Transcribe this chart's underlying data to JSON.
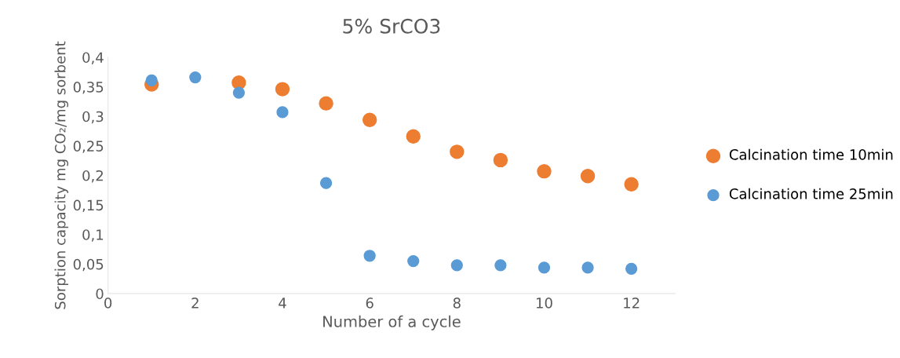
{
  "chart_data": {
    "type": "scatter",
    "title": "5% SrCO3",
    "xlabel": "Number of a cycle",
    "ylabel": "Sorption capacity mg CO₂/mg sorbent",
    "x": [
      1,
      2,
      3,
      4,
      5,
      6,
      7,
      8,
      9,
      10,
      11,
      12
    ],
    "series": [
      {
        "name": "Calcination time 10min",
        "color": "#ed7d31",
        "values": [
          0.354,
          null,
          0.357,
          0.346,
          0.322,
          0.294,
          0.266,
          0.24,
          0.226,
          0.207,
          0.199,
          0.185
        ]
      },
      {
        "name": "Calcination time 25min",
        "color": "#5b9bd5",
        "values": [
          0.361,
          0.366,
          0.34,
          0.307,
          0.187,
          0.064,
          0.055,
          0.048,
          0.048,
          0.044,
          0.044,
          0.042
        ]
      }
    ],
    "xlim": [
      0,
      13
    ],
    "xticks": [
      0,
      2,
      4,
      6,
      8,
      10,
      12
    ],
    "ylim": [
      0,
      0.4
    ],
    "yticks": [
      {
        "value": 0,
        "label": "0"
      },
      {
        "value": 0.05,
        "label": "0,05"
      },
      {
        "value": 0.1,
        "label": "0,1"
      },
      {
        "value": 0.15,
        "label": "0,15"
      },
      {
        "value": 0.2,
        "label": "0,2"
      },
      {
        "value": 0.25,
        "label": "0,25"
      },
      {
        "value": 0.3,
        "label": "0,3"
      },
      {
        "value": 0.35,
        "label": "0,35"
      },
      {
        "value": 0.4,
        "label": "0,4"
      }
    ],
    "grid": false,
    "legend": "right",
    "marker": "circle"
  }
}
